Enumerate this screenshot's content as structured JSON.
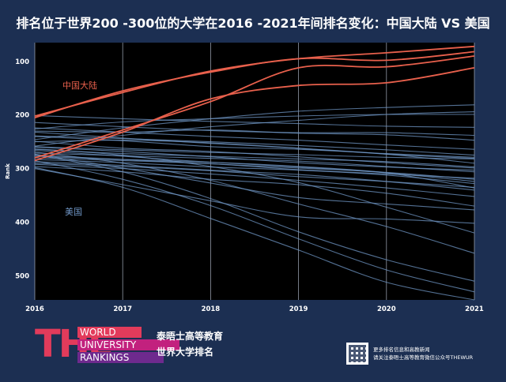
{
  "title": "排名位于世界200 -300位的大学在2016 -2021年间排名变化：中国大陆 VS 美国",
  "chart_data": {
    "type": "line",
    "x": [
      2016,
      2017,
      2018,
      2019,
      2020,
      2021
    ],
    "x_ticks": [
      "2016",
      "2017",
      "2018",
      "2019",
      "2020",
      "2021"
    ],
    "ylabel": "Rank",
    "y_ticks": [
      "100",
      "200",
      "300",
      "400",
      "500"
    ],
    "ylim": [
      545,
      65
    ],
    "y_inverted": true,
    "grid": "vertical",
    "colors": {
      "china": "#e8604c",
      "usa": "#6f95c4",
      "grid": "#aab4c4"
    },
    "annotations": [
      {
        "text": "中国大陆",
        "group": "china"
      },
      {
        "text": "美国",
        "group": "usa"
      }
    ],
    "china_series": [
      {
        "values": [
          202,
          158,
          118,
          95,
          84,
          72
        ]
      },
      {
        "values": [
          205,
          155,
          120,
          95,
          98,
          82
        ]
      },
      {
        "values": [
          280,
          228,
          175,
          112,
          110,
          90
        ]
      },
      {
        "values": [
          285,
          232,
          170,
          145,
          140,
          112
        ]
      }
    ],
    "usa_series": [
      {
        "values": [
          201,
          207,
          212,
          216,
          221,
          223
        ]
      },
      {
        "values": [
          214,
          222,
          229,
          233,
          233,
          238
        ]
      },
      {
        "values": [
          224,
          232,
          240,
          247,
          256,
          264
        ]
      },
      {
        "values": [
          232,
          243,
          253,
          262,
          273,
          281
        ]
      },
      {
        "values": [
          239,
          244,
          250,
          257,
          265,
          275
        ]
      },
      {
        "values": [
          240,
          248,
          259,
          264,
          272,
          279
        ]
      },
      {
        "values": [
          249,
          262,
          268,
          278,
          289,
          299
        ]
      },
      {
        "values": [
          250,
          247,
          252,
          262,
          273,
          290
        ]
      },
      {
        "values": [
          259,
          265,
          270,
          274,
          279,
          282
        ]
      },
      {
        "values": [
          260,
          268,
          278,
          289,
          297,
          303
        ]
      },
      {
        "values": [
          264,
          272,
          277,
          282,
          287,
          297
        ]
      },
      {
        "values": [
          266,
          277,
          288,
          297,
          308,
          324
        ]
      },
      {
        "values": [
          271,
          276,
          281,
          286,
          296,
          306
        ]
      },
      {
        "values": [
          275,
          283,
          291,
          299,
          307,
          320
        ]
      },
      {
        "values": [
          277,
          283,
          288,
          296,
          308,
          336
        ]
      },
      {
        "values": [
          280,
          285,
          291,
          302,
          310,
          318
        ]
      },
      {
        "values": [
          283,
          289,
          297,
          303,
          312,
          328
        ]
      },
      {
        "values": [
          287,
          294,
          303,
          311,
          324,
          340
        ]
      },
      {
        "values": [
          290,
          296,
          304,
          315,
          324,
          335
        ]
      },
      {
        "values": [
          292,
          300,
          310,
          322,
          336,
          352
        ]
      },
      {
        "values": [
          296,
          306,
          320,
          330,
          346,
          370
        ]
      },
      {
        "values": [
          230,
          232,
          228,
          234,
          237,
          247
        ]
      },
      {
        "values": [
          226,
          213,
          207,
          202,
          199,
          199
        ]
      },
      {
        "values": [
          246,
          224,
          207,
          193,
          186,
          181
        ]
      },
      {
        "values": [
          258,
          238,
          222,
          210,
          199,
          194
        ]
      },
      {
        "values": [
          263,
          275,
          296,
          326,
          372,
          420
        ]
      },
      {
        "values": [
          269,
          290,
          322,
          366,
          408,
          458
        ]
      },
      {
        "values": [
          274,
          306,
          356,
          418,
          470,
          510
        ]
      },
      {
        "values": [
          285,
          320,
          369,
          431,
          489,
          530
        ]
      },
      {
        "values": [
          298,
          335,
          393,
          452,
          512,
          545
        ]
      },
      {
        "values": [
          300,
          330,
          360,
          390,
          394,
          402
        ]
      },
      {
        "values": [
          273,
          299,
          327,
          354,
          366,
          377
        ]
      }
    ]
  },
  "footer": {
    "logo_mark": "THE",
    "logo_line1": "WORLD",
    "logo_line2": "UNIVERSITY",
    "logo_line3": "RANKINGS",
    "brand_line1": "泰晤士高等教育",
    "brand_line2": "世界大学排名",
    "info_line1": "更多排名信息和高教新闻",
    "info_line2": "请关注泰晤士高等教育微信公众号THEWUR"
  }
}
